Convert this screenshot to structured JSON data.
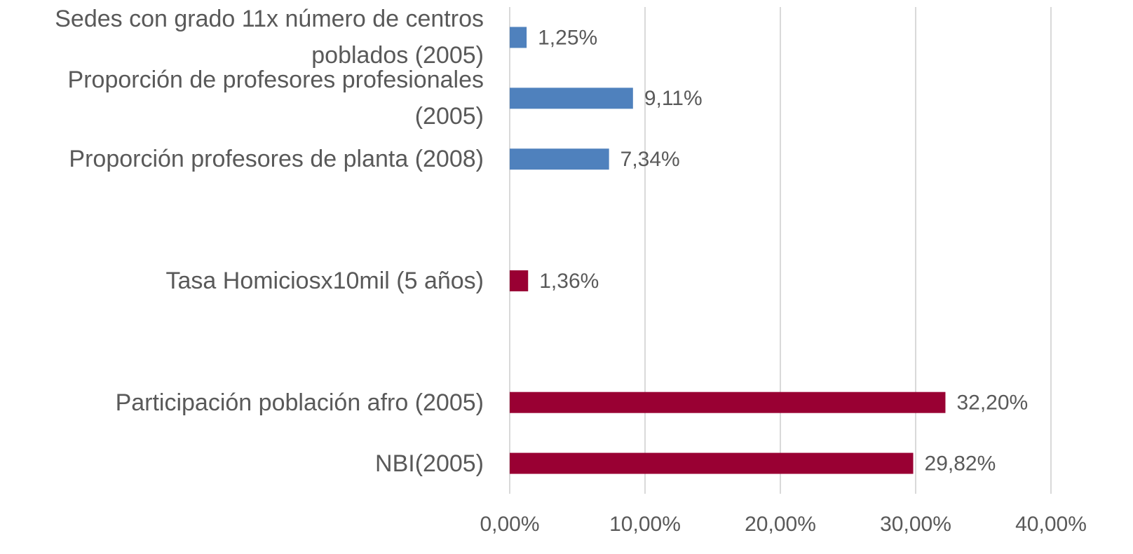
{
  "chart_data": {
    "type": "bar",
    "orientation": "horizontal",
    "categories": [
      "Sedes con grado 11x número de centros poblados (2005)",
      "Proporción de profesores profesionales (2005)",
      "Proporción profesores de planta (2008)",
      null,
      "Tasa Homiciosx10mil (5 años)",
      null,
      "Participación población afro (2005)",
      "NBI(2005)"
    ],
    "values": [
      1.25,
      9.11,
      7.34,
      null,
      1.36,
      null,
      32.2,
      29.82
    ],
    "value_labels": [
      "1,25%",
      "9,11%",
      "7,34%",
      null,
      "1,36%",
      null,
      "32,20%",
      "29,82%"
    ],
    "colors": [
      "#4f81bd",
      "#4f81bd",
      "#4f81bd",
      null,
      "#990033",
      null,
      "#990033",
      "#990033"
    ],
    "xlim": [
      0,
      40
    ],
    "xticks": [
      {
        "value": 0,
        "label": "0,00%"
      },
      {
        "value": 10,
        "label": "10,00%"
      },
      {
        "value": 20,
        "label": "20,00%"
      },
      {
        "value": 30,
        "label": "30,00%"
      },
      {
        "value": 40,
        "label": "40,00%"
      }
    ],
    "grid": true
  }
}
